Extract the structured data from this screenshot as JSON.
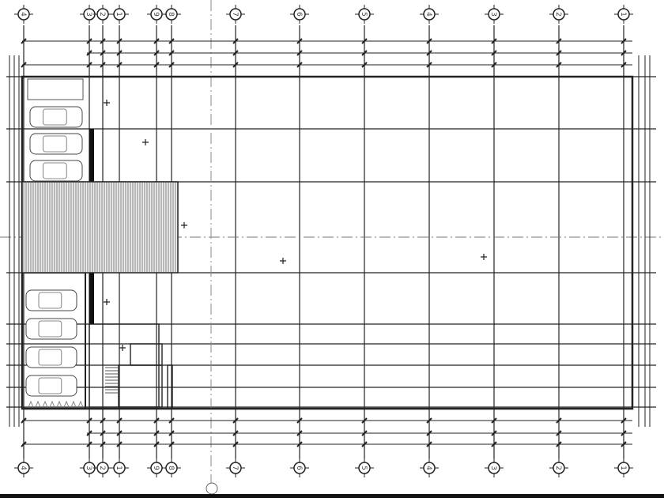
{
  "drawing": {
    "type": "architectural floor plan",
    "grid_axes": [
      {
        "label": "4"
      },
      {
        "label": "3"
      },
      {
        "label": "2"
      },
      {
        "label": "1"
      },
      {
        "label": "9"
      },
      {
        "label": "8"
      },
      {
        "label": "7"
      },
      {
        "label": "6"
      },
      {
        "label": "5"
      },
      {
        "label": "4"
      },
      {
        "label": "3"
      },
      {
        "label": "2"
      },
      {
        "label": "1"
      }
    ],
    "parking_spaces_top": 4,
    "parking_spaces_bottom": 4,
    "colors": {
      "line": "#222222",
      "hatch": "#555555",
      "background": "#ffffff"
    }
  }
}
